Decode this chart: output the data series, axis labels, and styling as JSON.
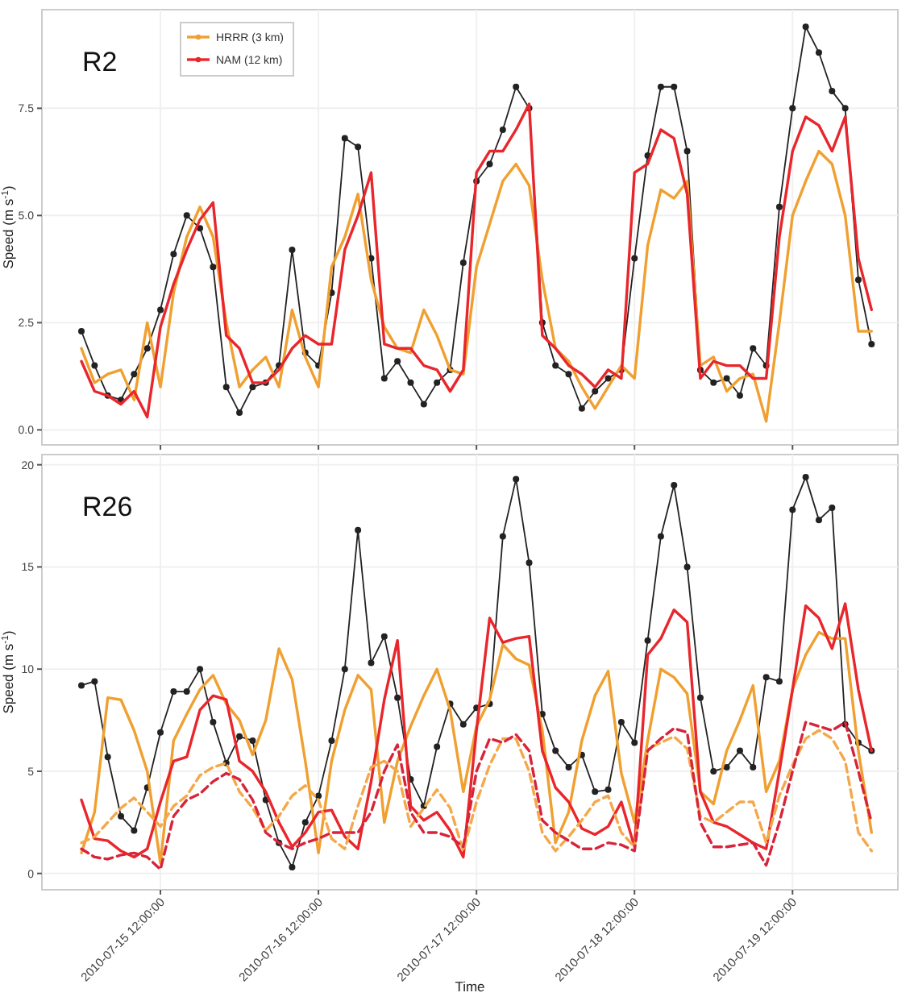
{
  "chart_data": [
    {
      "type": "line",
      "title": "R2",
      "ylabel": "Speed (m s$^{-1}$)",
      "legend": "top left",
      "grid": true,
      "tick_labels": "y",
      "x": [
        "2010-07-15T00:00",
        "2010-07-15T02:00",
        "2010-07-15T04:00",
        "2010-07-15T06:00",
        "2010-07-15T08:00",
        "2010-07-15T10:00",
        "2010-07-15T12:00",
        "2010-07-15T14:00",
        "2010-07-15T16:00",
        "2010-07-15T18:00",
        "2010-07-15T20:00",
        "2010-07-15T22:00",
        "2010-07-16T00:00",
        "2010-07-16T02:00",
        "2010-07-16T04:00",
        "2010-07-16T06:00",
        "2010-07-16T08:00",
        "2010-07-16T10:00",
        "2010-07-16T12:00",
        "2010-07-16T14:00",
        "2010-07-16T16:00",
        "2010-07-16T18:00",
        "2010-07-16T20:00",
        "2010-07-16T22:00",
        "2010-07-17T00:00",
        "2010-07-17T02:00",
        "2010-07-17T04:00",
        "2010-07-17T06:00",
        "2010-07-17T08:00",
        "2010-07-17T10:00",
        "2010-07-17T12:00",
        "2010-07-17T14:00",
        "2010-07-17T16:00",
        "2010-07-17T18:00",
        "2010-07-17T20:00",
        "2010-07-17T22:00",
        "2010-07-18T00:00",
        "2010-07-18T02:00",
        "2010-07-18T04:00",
        "2010-07-18T06:00",
        "2010-07-18T08:00",
        "2010-07-18T10:00",
        "2010-07-18T12:00",
        "2010-07-18T14:00",
        "2010-07-18T16:00",
        "2010-07-18T18:00",
        "2010-07-18T20:00",
        "2010-07-18T22:00",
        "2010-07-19T00:00",
        "2010-07-19T02:00",
        "2010-07-19T04:00",
        "2010-07-19T06:00",
        "2010-07-19T08:00",
        "2010-07-19T10:00",
        "2010-07-19T12:00",
        "2010-07-19T14:00",
        "2010-07-19T16:00",
        "2010-07-19T18:00",
        "2010-07-19T20:00",
        "2010-07-19T22:00",
        "2010-07-20T00:00"
      ],
      "xlim": [
        "2010-07-14T18:00",
        "2010-07-20T04:00"
      ],
      "xticks": [
        {
          "value": "2010-07-15T12:00",
          "label": null
        },
        {
          "value": "2010-07-16T12:00",
          "label": null
        },
        {
          "value": "2010-07-17T12:00",
          "label": null
        },
        {
          "value": "2010-07-18T12:00",
          "label": null
        },
        {
          "value": "2010-07-19T12:00",
          "label": null
        }
      ],
      "ylim": [
        -0.35,
        9.8
      ],
      "yticks": [
        {
          "value": 0,
          "label": "0.0"
        },
        {
          "value": 2.5,
          "label": "2.5"
        },
        {
          "value": 5,
          "label": "5.0"
        },
        {
          "value": 7.5,
          "label": "7.5"
        }
      ],
      "series": [
        {
          "color": "#222222",
          "marker": "circle",
          "line_style": "solid",
          "values": [
            2.3,
            1.5,
            0.8,
            0.7,
            1.3,
            1.9,
            2.8,
            4.1,
            5.0,
            4.7,
            3.8,
            1.0,
            0.4,
            1.0,
            1.1,
            1.5,
            4.2,
            1.8,
            1.5,
            3.2,
            6.8,
            6.6,
            4.0,
            1.2,
            1.6,
            1.1,
            0.6,
            1.1,
            1.4,
            3.9,
            5.8,
            6.2,
            7.0,
            8.0,
            7.5,
            2.5,
            1.5,
            1.3,
            0.5,
            0.9,
            1.2,
            1.4,
            4.0,
            6.4,
            8.0,
            8.0,
            6.5,
            1.4,
            1.1,
            1.2,
            0.8,
            1.9,
            1.5,
            5.2,
            7.5,
            9.4,
            8.8,
            7.9,
            7.5,
            3.5,
            2.0
          ]
        },
        {
          "name": "HRRR (3 km)",
          "color": "#f0a030",
          "marker": "none",
          "line_style": "solid",
          "values": [
            1.9,
            1.1,
            1.3,
            1.4,
            0.7,
            2.5,
            1.0,
            3.2,
            4.5,
            5.2,
            4.5,
            2.5,
            1.0,
            1.4,
            1.7,
            1.0,
            2.8,
            1.7,
            1.0,
            3.8,
            4.5,
            5.5,
            3.5,
            2.4,
            1.9,
            1.8,
            2.8,
            2.2,
            1.4,
            1.3,
            3.8,
            4.8,
            5.8,
            6.2,
            5.7,
            3.5,
            1.9,
            1.6,
            1.0,
            0.5,
            1.0,
            1.5,
            1.2,
            4.3,
            5.6,
            5.4,
            5.8,
            1.5,
            1.7,
            0.9,
            1.2,
            1.3,
            0.2,
            2.5,
            5.0,
            5.8,
            6.5,
            6.2,
            5.0,
            2.3,
            2.3
          ]
        },
        {
          "name": "NAM (12 km)",
          "color": "#e8262b",
          "marker": "none",
          "line_style": "solid",
          "values": [
            1.6,
            0.9,
            0.8,
            0.6,
            0.9,
            0.3,
            2.4,
            3.4,
            4.2,
            4.9,
            5.3,
            2.2,
            1.9,
            1.1,
            1.1,
            1.4,
            1.9,
            2.2,
            2.0,
            2.0,
            4.2,
            5.0,
            6.0,
            2.0,
            1.9,
            1.9,
            1.5,
            1.4,
            0.9,
            1.4,
            6.0,
            6.5,
            6.5,
            7.0,
            7.6,
            2.2,
            1.9,
            1.5,
            1.3,
            1.0,
            1.4,
            1.2,
            6.0,
            6.2,
            7.0,
            6.8,
            5.5,
            1.2,
            1.6,
            1.5,
            1.5,
            1.2,
            1.2,
            4.5,
            6.5,
            7.3,
            7.1,
            6.5,
            7.3,
            4.0,
            2.8
          ]
        }
      ]
    },
    {
      "type": "line",
      "title": "R26",
      "xlabel": "Time",
      "ylabel": "Speed (m s$^{-1}$)",
      "grid": true,
      "x": [
        "2010-07-15T00:00",
        "2010-07-15T02:00",
        "2010-07-15T04:00",
        "2010-07-15T06:00",
        "2010-07-15T08:00",
        "2010-07-15T10:00",
        "2010-07-15T12:00",
        "2010-07-15T14:00",
        "2010-07-15T16:00",
        "2010-07-15T18:00",
        "2010-07-15T20:00",
        "2010-07-15T22:00",
        "2010-07-16T00:00",
        "2010-07-16T02:00",
        "2010-07-16T04:00",
        "2010-07-16T06:00",
        "2010-07-16T08:00",
        "2010-07-16T10:00",
        "2010-07-16T12:00",
        "2010-07-16T14:00",
        "2010-07-16T16:00",
        "2010-07-16T18:00",
        "2010-07-16T20:00",
        "2010-07-16T22:00",
        "2010-07-17T00:00",
        "2010-07-17T02:00",
        "2010-07-17T04:00",
        "2010-07-17T06:00",
        "2010-07-17T08:00",
        "2010-07-17T10:00",
        "2010-07-17T12:00",
        "2010-07-17T14:00",
        "2010-07-17T16:00",
        "2010-07-17T18:00",
        "2010-07-17T20:00",
        "2010-07-17T22:00",
        "2010-07-18T00:00",
        "2010-07-18T02:00",
        "2010-07-18T04:00",
        "2010-07-18T06:00",
        "2010-07-18T08:00",
        "2010-07-18T10:00",
        "2010-07-18T12:00",
        "2010-07-18T14:00",
        "2010-07-18T16:00",
        "2010-07-18T18:00",
        "2010-07-18T20:00",
        "2010-07-18T22:00",
        "2010-07-19T00:00",
        "2010-07-19T02:00",
        "2010-07-19T04:00",
        "2010-07-19T06:00",
        "2010-07-19T08:00",
        "2010-07-19T10:00",
        "2010-07-19T12:00",
        "2010-07-19T14:00",
        "2010-07-19T16:00",
        "2010-07-19T18:00",
        "2010-07-19T20:00",
        "2010-07-19T22:00",
        "2010-07-20T00:00"
      ],
      "xlim": [
        "2010-07-14T18:00",
        "2010-07-20T04:00"
      ],
      "xticks": [
        {
          "value": "2010-07-15T12:00",
          "label": "2010-07-15 12:00:00"
        },
        {
          "value": "2010-07-16T12:00",
          "label": "2010-07-16 12:00:00"
        },
        {
          "value": "2010-07-17T12:00",
          "label": "2010-07-17 12:00:00"
        },
        {
          "value": "2010-07-18T12:00",
          "label": "2010-07-18 12:00:00"
        },
        {
          "value": "2010-07-19T12:00",
          "label": "2010-07-19 12:00:00"
        }
      ],
      "ylim": [
        -0.8,
        20.5
      ],
      "yticks": [
        0,
        5,
        10,
        15,
        20
      ],
      "series": [
        {
          "color": "#222222",
          "marker": "circle",
          "line_style": "solid",
          "values": [
            9.2,
            9.4,
            5.7,
            2.8,
            2.1,
            4.2,
            6.9,
            8.9,
            8.9,
            10.0,
            7.4,
            5.4,
            6.7,
            6.5,
            3.6,
            1.5,
            0.3,
            2.5,
            3.8,
            6.5,
            10.0,
            16.8,
            10.3,
            11.6,
            8.6,
            4.6,
            3.3,
            6.2,
            8.3,
            7.3,
            8.1,
            8.3,
            16.5,
            19.3,
            15.2,
            7.8,
            6.0,
            5.2,
            5.8,
            4.0,
            4.1,
            7.4,
            6.4,
            11.4,
            16.5,
            19.0,
            15.0,
            8.6,
            5.0,
            5.2,
            6.0,
            5.2,
            9.6,
            9.4,
            17.8,
            19.4,
            17.3,
            17.9,
            7.3,
            6.4,
            6.0
          ]
        },
        {
          "color": "#f0a030",
          "marker": "none",
          "line_style": "solid",
          "values": [
            1.0,
            3.0,
            8.6,
            8.5,
            7.0,
            5.0,
            0.5,
            6.5,
            7.8,
            9.0,
            9.7,
            8.3,
            7.5,
            5.8,
            7.5,
            11.0,
            9.5,
            5.5,
            1.0,
            5.5,
            8.0,
            9.7,
            9.0,
            2.5,
            5.5,
            7.2,
            8.7,
            10.0,
            8.0,
            4.0,
            7.2,
            8.5,
            11.2,
            10.5,
            10.2,
            7.0,
            1.5,
            3.0,
            6.5,
            8.7,
            9.9,
            4.9,
            2.5,
            6.5,
            10.0,
            9.6,
            8.8,
            4.0,
            3.4,
            6.0,
            7.5,
            9.2,
            4.0,
            5.5,
            9.0,
            10.7,
            11.8,
            11.5,
            11.5,
            6.0,
            2.0
          ]
        },
        {
          "color": "#e8262b",
          "marker": "none",
          "line_style": "solid",
          "values": [
            3.6,
            1.7,
            1.6,
            1.1,
            0.8,
            1.2,
            3.5,
            5.5,
            5.7,
            8.0,
            8.7,
            8.5,
            5.5,
            5.0,
            4.0,
            2.5,
            1.3,
            2.0,
            3.0,
            3.1,
            1.8,
            1.2,
            4.5,
            8.5,
            11.4,
            3.3,
            2.6,
            3.0,
            2.1,
            0.8,
            7.0,
            12.5,
            11.3,
            11.5,
            11.6,
            6.0,
            4.2,
            3.5,
            2.2,
            1.9,
            2.3,
            3.5,
            1.3,
            10.7,
            11.5,
            12.9,
            12.3,
            4.0,
            2.5,
            2.3,
            1.9,
            1.5,
            1.2,
            5.0,
            9.0,
            13.1,
            12.5,
            11.0,
            13.2,
            9.0,
            6.0
          ]
        },
        {
          "color": "#f5a84a",
          "marker": "none",
          "line_style": "dashed",
          "values": [
            1.5,
            1.8,
            2.5,
            3.2,
            3.7,
            3.0,
            2.3,
            3.3,
            3.8,
            4.8,
            5.2,
            5.4,
            4.0,
            3.2,
            2.1,
            2.8,
            3.8,
            4.3,
            3.6,
            1.7,
            1.2,
            3.3,
            5.2,
            5.5,
            5.0,
            2.3,
            3.2,
            4.1,
            3.2,
            1.1,
            3.5,
            5.3,
            6.6,
            6.6,
            5.0,
            2.0,
            1.1,
            1.8,
            2.6,
            3.5,
            3.8,
            2.0,
            1.3,
            6.1,
            6.4,
            6.7,
            6.1,
            2.8,
            2.5,
            3.0,
            3.5,
            3.5,
            1.5,
            3.8,
            5.3,
            6.6,
            7.0,
            6.6,
            5.5,
            2.0,
            1.1
          ]
        },
        {
          "color": "#d8243a",
          "marker": "none",
          "line_style": "dashed",
          "values": [
            1.2,
            0.8,
            0.7,
            0.9,
            1.0,
            0.8,
            0.2,
            2.8,
            3.6,
            3.9,
            4.5,
            4.9,
            4.6,
            3.6,
            2.0,
            1.5,
            1.2,
            1.5,
            1.7,
            2.0,
            2.0,
            2.0,
            3.0,
            5.0,
            6.3,
            3.0,
            2.0,
            2.0,
            1.8,
            1.3,
            5.0,
            6.6,
            6.4,
            6.8,
            6.0,
            2.6,
            2.0,
            1.6,
            1.2,
            1.2,
            1.5,
            1.4,
            1.1,
            6.0,
            6.6,
            7.1,
            6.9,
            2.5,
            1.3,
            1.3,
            1.4,
            1.5,
            0.4,
            2.5,
            5.0,
            7.4,
            7.2,
            7.0,
            7.4,
            5.0,
            2.5
          ]
        }
      ]
    }
  ]
}
